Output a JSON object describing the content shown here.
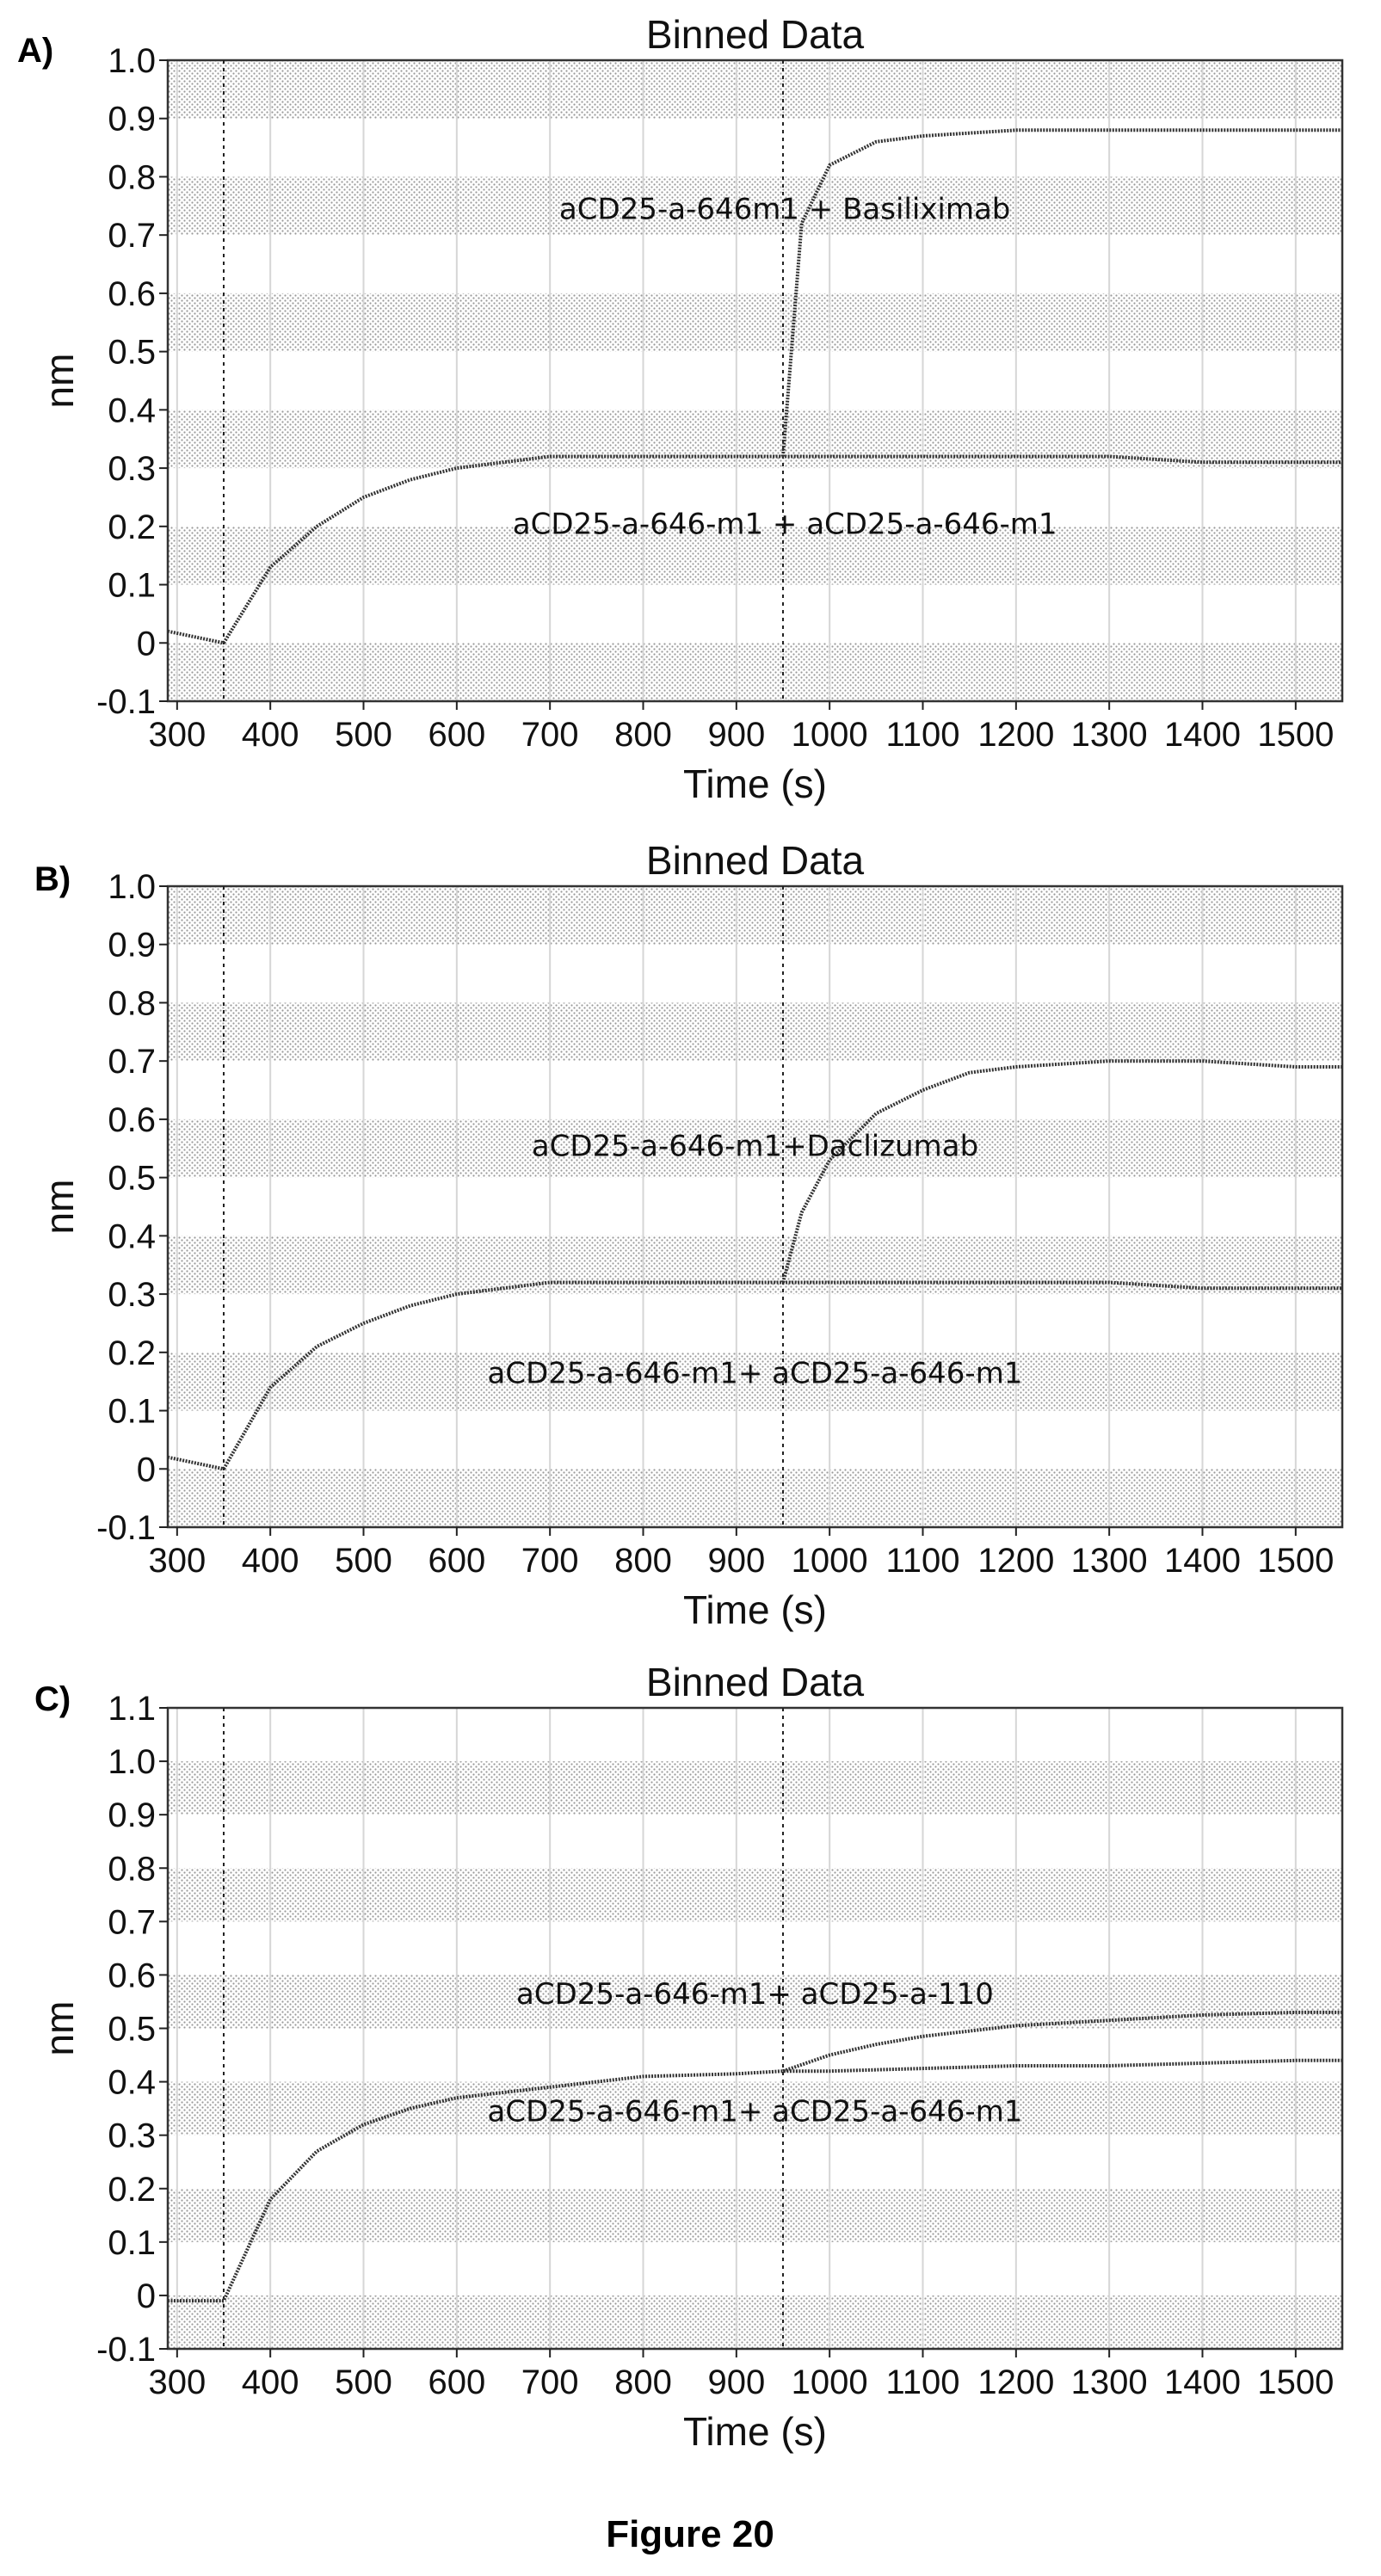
{
  "figure_caption": "Figure 20",
  "colors": {
    "curve": "#333333",
    "band": "#d9d9d9",
    "frame": "#333333"
  },
  "chart_data": [
    {
      "panel_label": "A)",
      "type": "line",
      "title": "Binned Data",
      "xlabel": "Time (s)",
      "ylabel": "nm",
      "xlim": [
        290,
        1550
      ],
      "ylim": [
        -0.1,
        1.0
      ],
      "xticks": [
        300,
        400,
        500,
        600,
        700,
        800,
        900,
        1000,
        1100,
        1200,
        1300,
        1400,
        1500
      ],
      "yticks": [
        -0.1,
        0,
        0.1,
        0.2,
        0.3,
        0.4,
        0.5,
        0.6,
        0.7,
        0.8,
        0.9,
        1.0
      ],
      "ytick_labels": [
        "-0.1",
        "0",
        "0.1",
        "0.2",
        "0.3",
        "0.4",
        "0.5",
        "0.6",
        "0.7",
        "0.8",
        "0.9",
        "1.0"
      ],
      "vlines": [
        350,
        950
      ],
      "grid": true,
      "series": [
        {
          "x": [
            290,
            350,
            400,
            450,
            500,
            550,
            600,
            700,
            800,
            900,
            950,
            1000,
            1100,
            1200,
            1300,
            1400,
            1500,
            1550
          ],
          "y": [
            0.02,
            0.0,
            0.13,
            0.2,
            0.25,
            0.28,
            0.3,
            0.32,
            0.32,
            0.32,
            0.32,
            0.32,
            0.32,
            0.32,
            0.32,
            0.31,
            0.31,
            0.31
          ]
        },
        {
          "x": [
            950,
            970,
            1000,
            1050,
            1100,
            1200,
            1300,
            1400,
            1500,
            1550
          ],
          "y": [
            0.32,
            0.72,
            0.82,
            0.86,
            0.87,
            0.88,
            0.88,
            0.88,
            0.88,
            0.88
          ]
        }
      ],
      "annotations": [
        {
          "text": "aCD25-a-646m1 + Basiliximab",
          "x": 952,
          "y": 0.745
        },
        {
          "text": "aCD25-a-646-m1 + aCD25-a-646-m1",
          "x": 952,
          "y": 0.205
        }
      ]
    },
    {
      "panel_label": "B)",
      "type": "line",
      "title": "Binned Data",
      "xlabel": "Time (s)",
      "ylabel": "nm",
      "xlim": [
        290,
        1550
      ],
      "ylim": [
        -0.1,
        1.0
      ],
      "xticks": [
        300,
        400,
        500,
        600,
        700,
        800,
        900,
        1000,
        1100,
        1200,
        1300,
        1400,
        1500
      ],
      "yticks": [
        -0.1,
        0,
        0.1,
        0.2,
        0.3,
        0.4,
        0.5,
        0.6,
        0.7,
        0.8,
        0.9,
        1.0
      ],
      "ytick_labels": [
        "-0.1",
        "0",
        "0.1",
        "0.2",
        "0.3",
        "0.4",
        "0.5",
        "0.6",
        "0.7",
        "0.8",
        "0.9",
        "1.0"
      ],
      "vlines": [
        350,
        950
      ],
      "grid": true,
      "series": [
        {
          "x": [
            290,
            350,
            400,
            450,
            500,
            550,
            600,
            700,
            800,
            900,
            950,
            1000,
            1100,
            1200,
            1300,
            1400,
            1500,
            1550
          ],
          "y": [
            0.02,
            0.0,
            0.14,
            0.21,
            0.25,
            0.28,
            0.3,
            0.32,
            0.32,
            0.32,
            0.32,
            0.32,
            0.32,
            0.32,
            0.32,
            0.31,
            0.31,
            0.31
          ]
        },
        {
          "x": [
            950,
            970,
            1000,
            1050,
            1100,
            1150,
            1200,
            1300,
            1400,
            1500,
            1550
          ],
          "y": [
            0.32,
            0.44,
            0.53,
            0.61,
            0.65,
            0.68,
            0.69,
            0.7,
            0.7,
            0.69,
            0.69
          ]
        }
      ],
      "annotations": [
        {
          "text": "aCD25-a-646-m1+Daclizumab",
          "x": 920,
          "y": 0.555
        },
        {
          "text": "aCD25-a-646-m1+ aCD25-a-646-m1",
          "x": 920,
          "y": 0.165
        }
      ]
    },
    {
      "panel_label": "C)",
      "type": "line",
      "title": "Binned Data",
      "xlabel": "Time (s)",
      "ylabel": "nm",
      "xlim": [
        290,
        1550
      ],
      "ylim": [
        -0.1,
        1.1
      ],
      "xticks": [
        300,
        400,
        500,
        600,
        700,
        800,
        900,
        1000,
        1100,
        1200,
        1300,
        1400,
        1500
      ],
      "yticks": [
        -0.1,
        0,
        0.1,
        0.2,
        0.3,
        0.4,
        0.5,
        0.6,
        0.7,
        0.8,
        0.9,
        1.0,
        1.1
      ],
      "ytick_labels": [
        "-0.1",
        "0",
        "0.1",
        "0.2",
        "0.3",
        "0.4",
        "0.5",
        "0.6",
        "0.7",
        "0.8",
        "0.9",
        "1.0",
        "1.1"
      ],
      "vlines": [
        350,
        950
      ],
      "grid": true,
      "series": [
        {
          "x": [
            290,
            350,
            400,
            450,
            500,
            550,
            600,
            700,
            800,
            900,
            950,
            1000,
            1100,
            1200,
            1300,
            1400,
            1500,
            1550
          ],
          "y": [
            -0.01,
            -0.01,
            0.18,
            0.27,
            0.32,
            0.35,
            0.37,
            0.39,
            0.41,
            0.415,
            0.42,
            0.42,
            0.425,
            0.43,
            0.43,
            0.435,
            0.44,
            0.44
          ]
        },
        {
          "x": [
            950,
            1000,
            1050,
            1100,
            1200,
            1300,
            1400,
            1500,
            1550
          ],
          "y": [
            0.42,
            0.45,
            0.47,
            0.485,
            0.505,
            0.515,
            0.525,
            0.53,
            0.53
          ]
        }
      ],
      "annotations": [
        {
          "text": "aCD25-a-646-m1+ aCD25-a-110",
          "x": 920,
          "y": 0.565
        },
        {
          "text": "aCD25-a-646-m1+ aCD25-a-646-m1",
          "x": 920,
          "y": 0.345
        }
      ]
    }
  ]
}
